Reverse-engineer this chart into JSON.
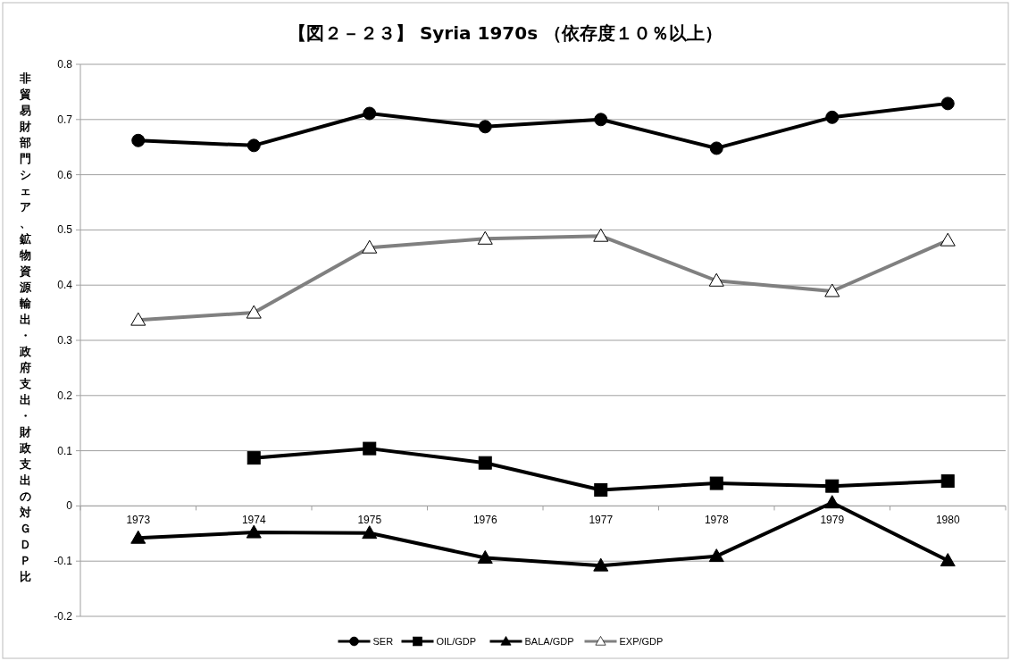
{
  "chart_data": {
    "type": "line",
    "title": "【図２－２３】 Syria 1970s （依存度１０％以上）",
    "ylabel": "非貿易財部門シェア、鉱物資源輸出・政府支出・財政支出の対ＧＤＰ比",
    "categories": [
      "1973",
      "1974",
      "1975",
      "1976",
      "1977",
      "1978",
      "1979",
      "1980"
    ],
    "ylim": [
      -0.2,
      0.8
    ],
    "yticks": [
      -0.2,
      -0.1,
      0,
      0.1,
      0.2,
      0.3,
      0.4,
      0.5,
      0.6,
      0.7,
      0.8
    ],
    "grid": "y",
    "legend": "bottom",
    "line_style": "solid",
    "series": [
      {
        "name": "SER",
        "color": "#000000",
        "marker": "circle",
        "values": [
          0.662,
          0.653,
          0.711,
          0.687,
          0.7,
          0.648,
          0.704,
          0.729
        ]
      },
      {
        "name": "OIL/GDP",
        "color": "#000000",
        "marker": "square",
        "values": [
          null,
          0.087,
          0.104,
          0.078,
          0.029,
          0.041,
          0.036,
          0.045
        ]
      },
      {
        "name": "BALA/GDP",
        "color": "#000000",
        "marker": "triangle",
        "values": [
          -0.058,
          -0.048,
          -0.049,
          -0.094,
          -0.108,
          -0.091,
          0.006,
          -0.099
        ]
      },
      {
        "name": "EXP/GDP",
        "color": "#808080",
        "marker": "triangle",
        "values": [
          0.337,
          0.35,
          0.468,
          0.484,
          0.489,
          0.408,
          0.389,
          0.481
        ]
      }
    ]
  }
}
